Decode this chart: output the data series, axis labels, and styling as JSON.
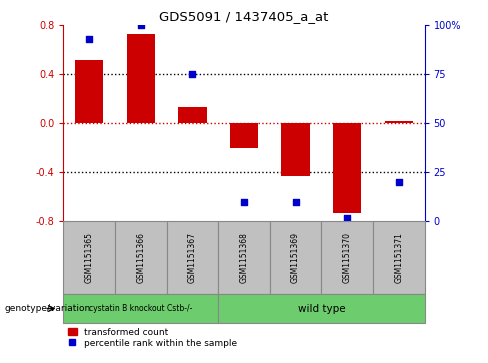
{
  "title": "GDS5091 / 1437405_a_at",
  "samples": [
    "GSM1151365",
    "GSM1151366",
    "GSM1151367",
    "GSM1151368",
    "GSM1151369",
    "GSM1151370",
    "GSM1151371"
  ],
  "red_bars": [
    0.52,
    0.73,
    0.13,
    -0.2,
    -0.43,
    -0.73,
    0.02
  ],
  "blue_dots_pct": [
    93,
    100,
    75,
    10,
    10,
    2,
    20
  ],
  "ylim_left": [
    -0.8,
    0.8
  ],
  "ylim_right": [
    0,
    100
  ],
  "yticks_left": [
    -0.8,
    -0.4,
    0.0,
    0.4,
    0.8
  ],
  "yticks_right": [
    0,
    25,
    50,
    75,
    100
  ],
  "ytick_labels_right": [
    "0",
    "25",
    "50",
    "75",
    "100%"
  ],
  "bar_color": "#cc0000",
  "dot_color": "#0000cc",
  "red_hline_color": "#cc0000",
  "black_hline_color": "#000000",
  "group1_label": "cystatin B knockout Cstb-/-",
  "group1_count": 3,
  "group2_label": "wild type",
  "group2_count": 4,
  "group_bg_color": "#6dcc6d",
  "sample_bg_color": "#c0c0c0",
  "sample_edge_color": "#888888",
  "legend_red_label": "transformed count",
  "legend_blue_label": "percentile rank within the sample",
  "genotype_label": "genotype/variation",
  "bar_width": 0.55
}
